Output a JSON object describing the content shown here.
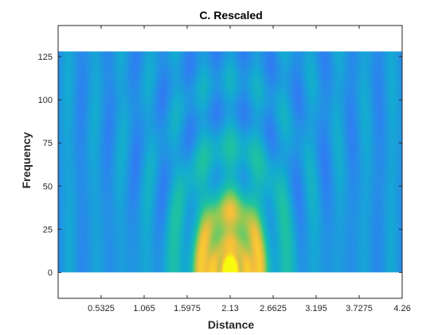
{
  "chart_data": {
    "type": "heatmap",
    "title": "C. Rescaled",
    "xlabel": "Distance",
    "ylabel": "Frequency",
    "xlim": [
      0,
      4.26
    ],
    "ylim": [
      -15,
      143
    ],
    "data_extent": {
      "x": [
        0,
        4.26
      ],
      "y": [
        0,
        128
      ]
    },
    "x_ticks": [
      {
        "value": 0.5325,
        "label": "0.5325"
      },
      {
        "value": 1.065,
        "label": "1.065"
      },
      {
        "value": 1.5975,
        "label": "1.5975"
      },
      {
        "value": 2.13,
        "label": "2.13"
      },
      {
        "value": 2.6625,
        "label": "2.6625"
      },
      {
        "value": 3.195,
        "label": "3.195"
      },
      {
        "value": 3.7275,
        "label": "3.7275"
      },
      {
        "value": 4.26,
        "label": "4.26"
      }
    ],
    "y_ticks": [
      {
        "value": 0,
        "label": "0"
      },
      {
        "value": 25,
        "label": "25"
      },
      {
        "value": 50,
        "label": "50"
      },
      {
        "value": 75,
        "label": "75"
      },
      {
        "value": 100,
        "label": "100"
      },
      {
        "value": 125,
        "label": "125"
      }
    ],
    "colormap": "parula",
    "grid": false,
    "pattern": {
      "center_distance": 2.13,
      "description_values": "nested semi-elliptical bands centered at distance 2.13, high intensity (yellow) near low frequency at center"
    }
  }
}
